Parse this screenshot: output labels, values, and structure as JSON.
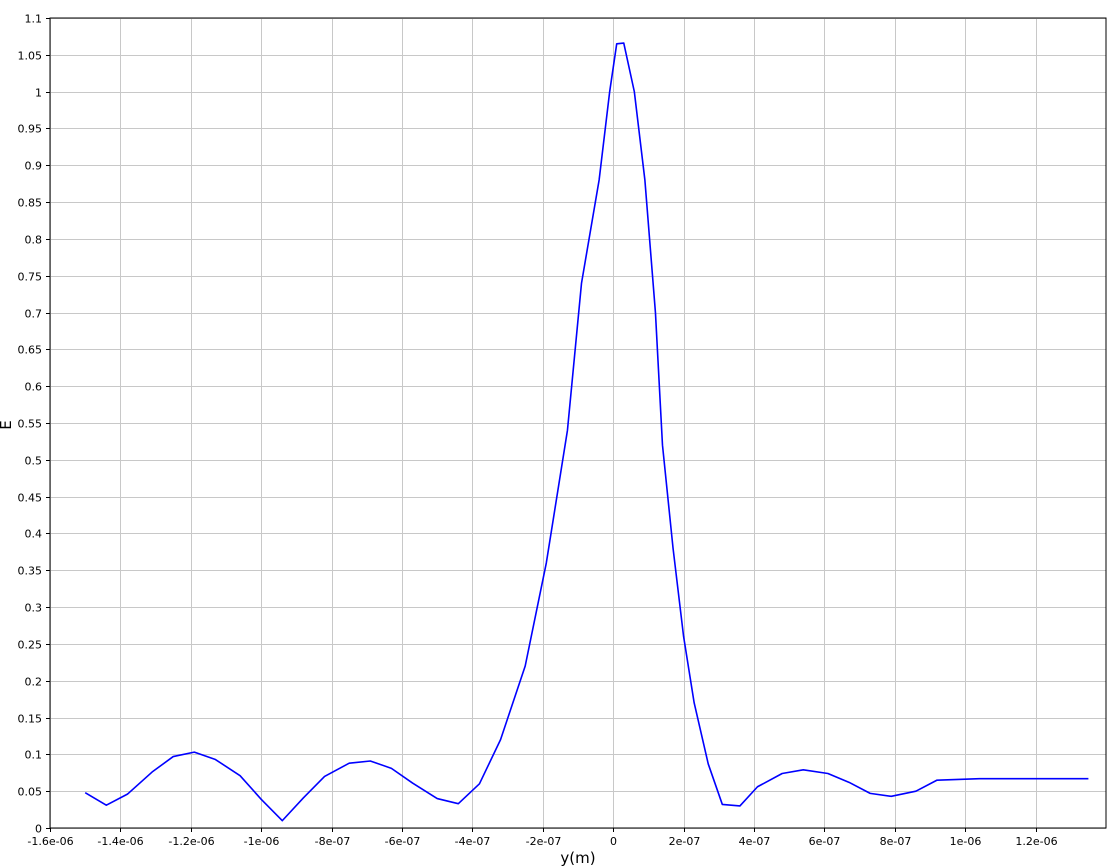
{
  "chart_data": {
    "type": "line",
    "title": "",
    "xlabel": "y(m)",
    "ylabel": "E",
    "xlim": [
      -1.6e-06,
      1.4e-06
    ],
    "ylim": [
      0,
      1.1
    ],
    "grid": true,
    "x_ticks": [
      -1.6e-06,
      -1.4e-06,
      -1.2e-06,
      -1e-06,
      -8e-07,
      -6e-07,
      -4e-07,
      -2e-07,
      0,
      2e-07,
      4e-07,
      6e-07,
      8e-07,
      1e-06,
      1.2e-06
    ],
    "x_tick_labels": [
      "-1.6e-06",
      "-1.4e-06",
      "-1.2e-06",
      "-1e-06",
      "-8e-07",
      "-6e-07",
      "-4e-07",
      "-2e-07",
      "0",
      "2e-07",
      "4e-07",
      "6e-07",
      "8e-07",
      "1e-06",
      "1.2e-06"
    ],
    "y_ticks": [
      0,
      0.05,
      0.1,
      0.15,
      0.2,
      0.25,
      0.3,
      0.35,
      0.4,
      0.45,
      0.5,
      0.55,
      0.6,
      0.65,
      0.7,
      0.75,
      0.8,
      0.85,
      0.9,
      0.95,
      1,
      1.05,
      1.1
    ],
    "y_tick_labels": [
      "0",
      "0.05",
      "0.1",
      "0.15",
      "0.2",
      "0.25",
      "0.3",
      "0.35",
      "0.4",
      "0.45",
      "0.5",
      "0.55",
      "0.6",
      "0.65",
      "0.7",
      "0.75",
      "0.8",
      "0.85",
      "0.9",
      "0.95",
      "1",
      "1.05",
      "1.1"
    ],
    "series": [
      {
        "color": "#0000ff",
        "x": [
          -1.5e-06,
          -1.44e-06,
          -1.38e-06,
          -1.31e-06,
          -1.25e-06,
          -1.19e-06,
          -1.13e-06,
          -1.06e-06,
          -1e-06,
          -9.4e-07,
          -8.8e-07,
          -8.2e-07,
          -7.5e-07,
          -6.9e-07,
          -6.3e-07,
          -5.7e-07,
          -5e-07,
          -4.4e-07,
          -3.8e-07,
          -3.2e-07,
          -2.5e-07,
          -1.9e-07,
          -1.3e-07,
          -9e-08,
          -4e-08,
          -1e-08,
          1e-08,
          3e-08,
          6e-08,
          9e-08,
          1.2e-07,
          1.4e-07,
          1.7e-07,
          2e-07,
          2.3e-07,
          2.7e-07,
          3.1e-07,
          3.6e-07,
          4.1e-07,
          4.8e-07,
          5.4e-07,
          6.1e-07,
          6.7e-07,
          7.3e-07,
          7.9e-07,
          8.6e-07,
          9.2e-07,
          9.8e-07,
          1.04e-06,
          1.1e-06,
          1.16e-06,
          1.23e-06,
          1.35e-06
        ],
        "y": [
          0.048,
          0.031,
          0.046,
          0.076,
          0.097,
          0.103,
          0.093,
          0.071,
          0.039,
          0.01,
          0.041,
          0.07,
          0.088,
          0.091,
          0.081,
          0.061,
          0.04,
          0.033,
          0.06,
          0.12,
          0.22,
          0.36,
          0.54,
          0.74,
          0.88,
          1.0,
          1.065,
          1.066,
          1.0,
          0.88,
          0.7,
          0.52,
          0.38,
          0.26,
          0.17,
          0.087,
          0.032,
          0.03,
          0.056,
          0.074,
          0.079,
          0.074,
          0.062,
          0.047,
          0.043,
          0.05,
          0.065,
          0.066,
          0.067,
          0.067,
          0.067,
          0.067,
          0.067
        ]
      }
    ]
  }
}
